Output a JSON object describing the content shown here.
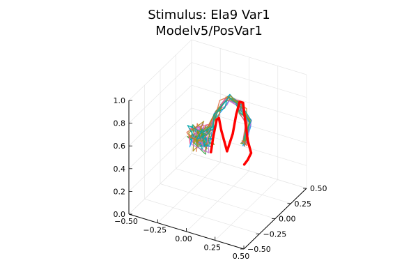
{
  "chart_data": {
    "type": "line",
    "projection": "3d",
    "title_lines": [
      "Stimulus: Ela9 Var1",
      "Modelv5/PosVar1"
    ],
    "xlabel": "",
    "ylabel": "",
    "zlabel": "",
    "xlim": [
      -0.5,
      0.5
    ],
    "ylim": [
      -0.5,
      0.5
    ],
    "zlim": [
      0.0,
      1.0
    ],
    "x_ticks": [
      "−0.50",
      "−0.25",
      "0.00",
      "0.25",
      "0.50"
    ],
    "y_ticks": [
      "−0.50",
      "−0.25",
      "0.00",
      "0.25",
      "0.50"
    ],
    "z_ticks": [
      "0.0",
      "0.2",
      "0.4",
      "0.6",
      "0.8",
      "1.0"
    ],
    "grid": true,
    "legend": "none",
    "highlight_color": "#ff0000",
    "series": [
      {
        "color": "#ff0000",
        "points": [
          [
            -0.07,
            0.02,
            0.4
          ],
          [
            -0.05,
            0.02,
            0.54
          ],
          [
            -0.02,
            0.02,
            0.7
          ],
          [
            0.0,
            0.02,
            0.72
          ],
          [
            0.02,
            0.02,
            0.62
          ],
          [
            0.07,
            0.02,
            0.45
          ],
          [
            0.12,
            0.02,
            0.62
          ],
          [
            0.15,
            0.02,
            0.8
          ],
          [
            0.18,
            0.02,
            0.92
          ],
          [
            0.21,
            0.02,
            0.92
          ],
          [
            0.23,
            0.02,
            0.75
          ],
          [
            0.25,
            0.02,
            0.6
          ],
          [
            0.28,
            0.02,
            0.5
          ],
          [
            0.25,
            0.02,
            0.43
          ],
          [
            0.22,
            0.02,
            0.38
          ]
        ]
      }
    ],
    "background_traces": {
      "colors": [
        "#009af9",
        "#e26f46",
        "#3da44d",
        "#c271d2",
        "#ac8e18",
        "#00a9ad",
        "#ed5e93",
        "#c68225",
        "#00a98d",
        "#8e971e"
      ],
      "count": 16,
      "base_path": [
        [
          -0.15,
          0.0,
          0.5
        ],
        [
          -0.1,
          0.0,
          0.58
        ],
        [
          -0.06,
          0.0,
          0.64
        ],
        [
          0.0,
          0.0,
          0.78
        ],
        [
          0.05,
          0.0,
          0.88
        ],
        [
          0.1,
          0.0,
          0.94
        ],
        [
          0.18,
          0.0,
          0.92
        ],
        [
          0.22,
          0.0,
          0.86
        ],
        [
          0.27,
          0.0,
          0.78
        ],
        [
          0.24,
          0.0,
          0.6
        ],
        [
          0.22,
          0.0,
          0.58
        ]
      ],
      "cluster": {
        "center": [
          -0.15,
          0.0,
          0.52
        ],
        "spread": [
          0.1,
          0.06,
          0.12
        ],
        "points_per_trace": 7
      }
    }
  }
}
